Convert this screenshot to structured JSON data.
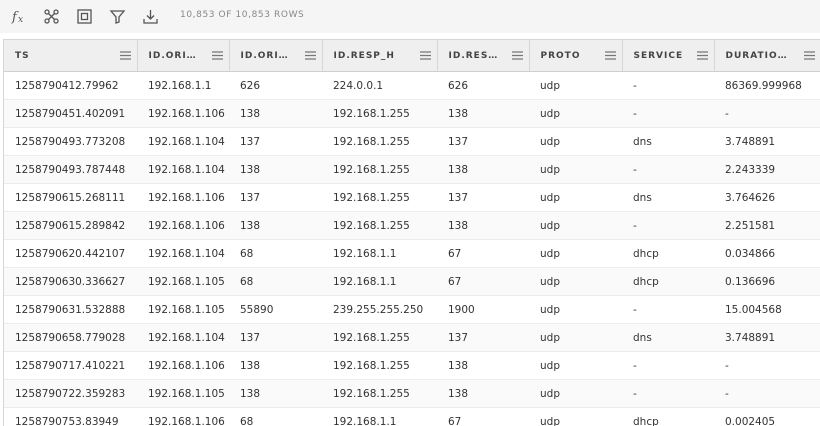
{
  "toolbar": {
    "row_count": "10,853 OF 10,853 ROWS"
  },
  "table": {
    "columns": [
      "TS",
      "ID.ORI…",
      "ID.ORI…",
      "ID.RESP_H",
      "ID.RES…",
      "PROTO",
      "SERVICE",
      "DURATIO…"
    ],
    "rows": [
      [
        "1258790412.79962",
        "192.168.1.1",
        "626",
        "224.0.0.1",
        "626",
        "udp",
        "-",
        "86369.999968"
      ],
      [
        "1258790451.402091",
        "192.168.1.106",
        "138",
        "192.168.1.255",
        "138",
        "udp",
        "-",
        "-"
      ],
      [
        "1258790493.773208",
        "192.168.1.104",
        "137",
        "192.168.1.255",
        "137",
        "udp",
        "dns",
        "3.748891"
      ],
      [
        "1258790493.787448",
        "192.168.1.104",
        "138",
        "192.168.1.255",
        "138",
        "udp",
        "-",
        "2.243339"
      ],
      [
        "1258790615.268111",
        "192.168.1.106",
        "137",
        "192.168.1.255",
        "137",
        "udp",
        "dns",
        "3.764626"
      ],
      [
        "1258790615.289842",
        "192.168.1.106",
        "138",
        "192.168.1.255",
        "138",
        "udp",
        "-",
        "2.251581"
      ],
      [
        "1258790620.442107",
        "192.168.1.104",
        "68",
        "192.168.1.1",
        "67",
        "udp",
        "dhcp",
        "0.034866"
      ],
      [
        "1258790630.336627",
        "192.168.1.105",
        "68",
        "192.168.1.1",
        "67",
        "udp",
        "dhcp",
        "0.136696"
      ],
      [
        "1258790631.532888",
        "192.168.1.105",
        "55890",
        "239.255.255.250",
        "1900",
        "udp",
        "-",
        "15.004568"
      ],
      [
        "1258790658.779028",
        "192.168.1.104",
        "137",
        "192.168.1.255",
        "137",
        "udp",
        "dns",
        "3.748891"
      ],
      [
        "1258790717.410221",
        "192.168.1.106",
        "138",
        "192.168.1.255",
        "138",
        "udp",
        "-",
        "-"
      ],
      [
        "1258790722.359283",
        "192.168.1.105",
        "138",
        "192.168.1.255",
        "138",
        "udp",
        "-",
        "-"
      ],
      [
        "1258790753.83949",
        "192.168.1.106",
        "68",
        "192.168.1.1",
        "67",
        "udp",
        "dhcp",
        "0.002405"
      ]
    ]
  }
}
